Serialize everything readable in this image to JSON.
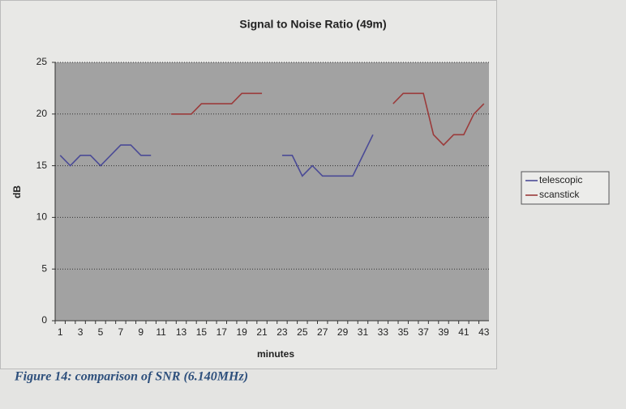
{
  "chart_data": {
    "type": "line",
    "title": "Signal to Noise Ratio (49m)",
    "xlabel": "minutes",
    "ylabel": "dB",
    "caption": "Figure 14: comparison of SNR (6.140MHz)",
    "categories": [
      1,
      null,
      3,
      null,
      5,
      null,
      7,
      null,
      9,
      null,
      11,
      null,
      13,
      null,
      15,
      null,
      17,
      null,
      19,
      null,
      21,
      null,
      23,
      null,
      25,
      null,
      27,
      null,
      29,
      null,
      31,
      null,
      33,
      null,
      35,
      null,
      37,
      null,
      39,
      null,
      41,
      null,
      43
    ],
    "series": [
      {
        "name": "telescopic",
        "color": "#4b4b96",
        "values": [
          16,
          15,
          16,
          16,
          15,
          16,
          17,
          17,
          16,
          16,
          null,
          null,
          null,
          null,
          null,
          null,
          null,
          null,
          null,
          null,
          null,
          null,
          16,
          16,
          14,
          15,
          14,
          14,
          14,
          14,
          16,
          18,
          null,
          null,
          null,
          null,
          null,
          null,
          null,
          null,
          null,
          null,
          null
        ]
      },
      {
        "name": "scanstick",
        "color": "#9b3b3b",
        "values": [
          null,
          null,
          null,
          null,
          null,
          null,
          null,
          null,
          null,
          null,
          null,
          20,
          20,
          20,
          21,
          21,
          21,
          21,
          22,
          22,
          22,
          null,
          null,
          null,
          null,
          null,
          null,
          null,
          null,
          null,
          null,
          null,
          null,
          21,
          22,
          22,
          22,
          18,
          17,
          18,
          18,
          20,
          21
        ]
      }
    ],
    "ylim": [
      0,
      25
    ],
    "yticks": [
      0,
      5,
      10,
      15,
      20,
      25
    ],
    "grid": true,
    "legend": "right"
  }
}
